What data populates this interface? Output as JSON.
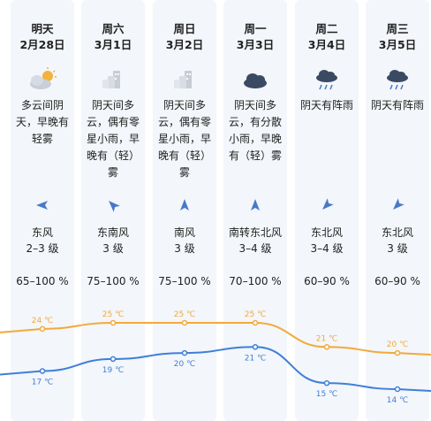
{
  "colors": {
    "high": "#f2a93b",
    "low": "#3f7fd9",
    "column_bg": "#f3f6fa",
    "icon_dark": "#3b4a63"
  },
  "days": [
    {
      "name": "明天",
      "date": "2月28日",
      "desc": [
        "多云间阴",
        "天，早晚有",
        "轻雾"
      ],
      "icon": "partly-cloudy-icon",
      "wind_icon": "wind-east-arrow-icon",
      "wind_dir": "东风",
      "wind_level": "2–3 级",
      "humidity": "65–100 %",
      "high": "24 ℃",
      "low": "17 ℃"
    },
    {
      "name": "周六",
      "date": "3月1日",
      "desc": [
        "阴天间多",
        "云，偶有零",
        "星小雨，早",
        "晚有（轻）",
        "雾"
      ],
      "icon": "foggy-city-icon",
      "wind_icon": "wind-southeast-arrow-icon",
      "wind_dir": "东南风",
      "wind_level": "3 级",
      "humidity": "75–100 %",
      "high": "25 ℃",
      "low": "19 ℃"
    },
    {
      "name": "周日",
      "date": "3月2日",
      "desc": [
        "阴天间多",
        "云，偶有零",
        "星小雨，早",
        "晚有（轻）",
        "雾"
      ],
      "icon": "foggy-city-icon",
      "wind_icon": "wind-south-arrow-icon",
      "wind_dir": "南风",
      "wind_level": "3 级",
      "humidity": "75–100 %",
      "high": "25 ℃",
      "low": "20 ℃"
    },
    {
      "name": "周一",
      "date": "3月3日",
      "desc": [
        "阴天间多",
        "云，有分散",
        "小雨，早晚",
        "有（轻）雾"
      ],
      "icon": "cloudy-icon",
      "wind_icon": "wind-south-arrow-icon",
      "wind_dir": "南转东北风",
      "wind_level": "3–4 级",
      "humidity": "70–100 %",
      "high": "25 ℃",
      "low": "21 ℃"
    },
    {
      "name": "周二",
      "date": "3月4日",
      "desc": [
        "阴天有阵雨"
      ],
      "icon": "showers-icon",
      "wind_icon": "wind-northeast-arrow-icon",
      "wind_dir": "东北风",
      "wind_level": "3–4 级",
      "humidity": "60–90 %",
      "high": "21 ℃",
      "low": "15 ℃"
    },
    {
      "name": "周三",
      "date": "3月5日",
      "desc": [
        "阴天有阵雨"
      ],
      "icon": "showers-icon",
      "wind_icon": "wind-northeast-arrow-icon",
      "wind_dir": "东北风",
      "wind_level": "3 级",
      "humidity": "60–90 %",
      "high": "20 ℃",
      "low": "14 ℃"
    }
  ],
  "chart_data": {
    "type": "line",
    "categories": [
      "明天",
      "周六",
      "周日",
      "周一",
      "周二",
      "周三"
    ],
    "series": [
      {
        "values": [
          24,
          25,
          25,
          25,
          21,
          20
        ]
      },
      {
        "values": [
          17,
          19,
          20,
          21,
          15,
          14
        ]
      }
    ],
    "labels": {
      "high": [
        "24 ℃",
        "25 ℃",
        "25 ℃",
        "25 ℃",
        "21 ℃",
        "20 ℃"
      ],
      "low": [
        "17 ℃",
        "19 ℃",
        "20 ℃",
        "21 ℃",
        "15 ℃",
        "14 ℃"
      ]
    },
    "grid": false
  }
}
